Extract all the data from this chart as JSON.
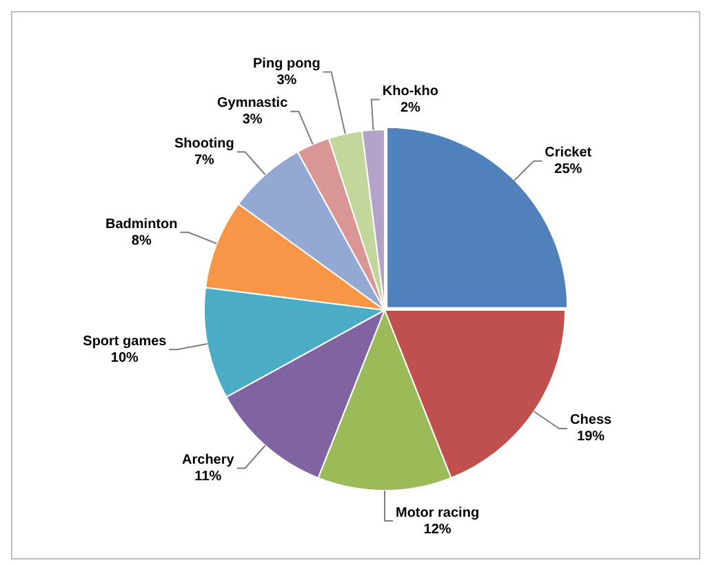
{
  "chart_data": {
    "type": "pie",
    "categories": [
      "Cricket",
      "Chess",
      "Motor racing",
      "Archery",
      "Sport games",
      "Badminton",
      "Shooting",
      "Gymnastic",
      "Ping pong",
      "Kho-kho"
    ],
    "values": [
      25,
      19,
      12,
      11,
      10,
      8,
      7,
      3,
      3,
      2
    ],
    "value_labels": [
      "25%",
      "19%",
      "12%",
      "11%",
      "10%",
      "8%",
      "7%",
      "3%",
      "3%",
      "2%"
    ],
    "colors": [
      "#4f81bd",
      "#c0504d",
      "#9bbb59",
      "#8064a2",
      "#4bacc6",
      "#f79646",
      "#93a9d4",
      "#d99694",
      "#c3d69b",
      "#b3a2c7"
    ],
    "legend": false
  }
}
